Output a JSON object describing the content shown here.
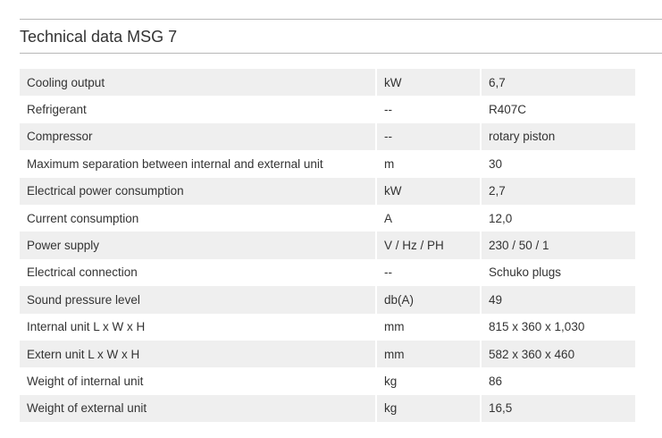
{
  "header": {
    "title": "Technical data MSG 7"
  },
  "rows": [
    {
      "label": "Cooling output",
      "unit": "kW",
      "value": "6,7"
    },
    {
      "label": "Refrigerant",
      "unit": "--",
      "value": "R407C"
    },
    {
      "label": "Compressor",
      "unit": "--",
      "value": "rotary piston"
    },
    {
      "label": "Maximum separation between internal and external unit",
      "unit": "m",
      "value": "30"
    },
    {
      "label": "Electrical power consumption",
      "unit": "kW",
      "value": "2,7"
    },
    {
      "label": "Current consumption",
      "unit": "A",
      "value": "12,0"
    },
    {
      "label": "Power supply",
      "unit": "V / Hz / PH",
      "value": "230 / 50 / 1"
    },
    {
      "label": "Electrical connection",
      "unit": "--",
      "value": "Schuko plugs"
    },
    {
      "label": "Sound pressure level",
      "unit": "db(A)",
      "value": "49"
    },
    {
      "label": "Internal unit L x W x H",
      "unit": "mm",
      "value": "815 x 360 x 1,030"
    },
    {
      "label": "Extern unit L x W x H",
      "unit": "mm",
      "value": "582 x 360 x 460"
    },
    {
      "label": "Weight of internal unit",
      "unit": "kg",
      "value": "86"
    },
    {
      "label": "Weight of external unit",
      "unit": "kg",
      "value": "16,5"
    }
  ],
  "colors": {
    "row_shade": "#efefef",
    "text": "#333333",
    "rule": "#b8b8b8"
  }
}
